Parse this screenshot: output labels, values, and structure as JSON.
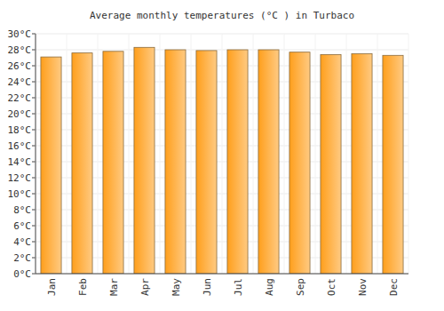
{
  "chart_data": {
    "type": "bar",
    "title": "Average monthly temperatures (°C ) in Turbaco",
    "categories": [
      "Jan",
      "Feb",
      "Mar",
      "Apr",
      "May",
      "Jun",
      "Jul",
      "Aug",
      "Sep",
      "Oct",
      "Nov",
      "Dec"
    ],
    "values": [
      27.1,
      27.6,
      27.8,
      28.3,
      28.0,
      27.9,
      28.0,
      28.0,
      27.7,
      27.4,
      27.5,
      27.3
    ],
    "color": "#ff9f1c",
    "ylim": [
      0,
      30
    ],
    "yticks": [
      {
        "value": 0,
        "label": "0°C"
      },
      {
        "value": 2,
        "label": "2°C"
      },
      {
        "value": 4,
        "label": "4°C"
      },
      {
        "value": 6,
        "label": "6°C"
      },
      {
        "value": 8,
        "label": "8°C"
      },
      {
        "value": 10,
        "label": "10°C"
      },
      {
        "value": 12,
        "label": "12°C"
      },
      {
        "value": 14,
        "label": "14°C"
      },
      {
        "value": 16,
        "label": "16°C"
      },
      {
        "value": 18,
        "label": "18°C"
      },
      {
        "value": 20,
        "label": "20°C"
      },
      {
        "value": 22,
        "label": "22°C"
      },
      {
        "value": 24,
        "label": "24°C"
      },
      {
        "value": 26,
        "label": "26°C"
      },
      {
        "value": 28,
        "label": "28°C"
      },
      {
        "value": 30,
        "label": "30°C"
      }
    ],
    "grid": true
  }
}
